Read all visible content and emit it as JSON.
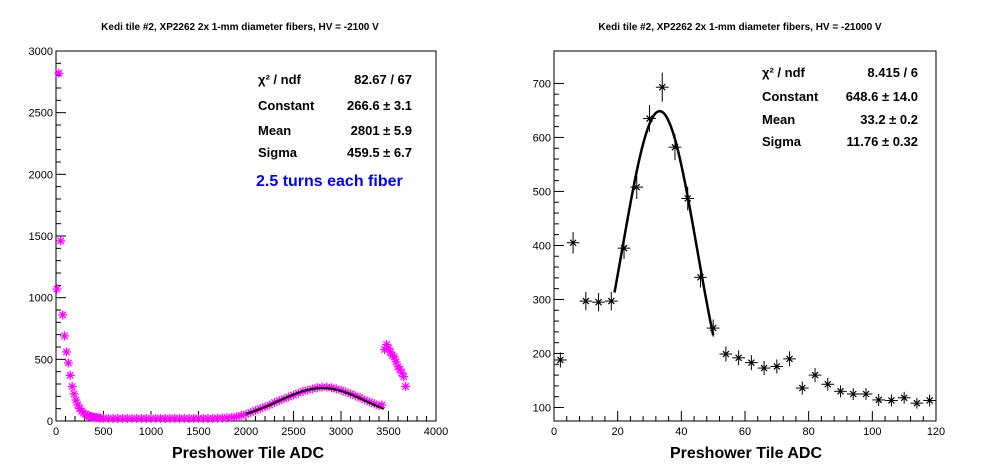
{
  "chart_data": [
    {
      "type": "scatter",
      "title": "Kedi tile #2, XP2262 2x 1-mm diameter fibers, HV = -2100 V",
      "xlabel": "Preshower Tile ADC",
      "xlim": [
        0,
        4000
      ],
      "ylim": [
        0,
        3000
      ],
      "xticks": [
        "0",
        "500",
        "1000",
        "1500",
        "2000",
        "2500",
        "3000",
        "3500",
        "4000"
      ],
      "yticks": [
        "0",
        "500",
        "1000",
        "1500",
        "2000",
        "2500",
        "3000"
      ],
      "marker_color": "#ff00ff",
      "x": [
        10,
        30,
        50,
        70,
        90,
        110,
        130,
        150,
        170,
        190,
        210,
        230,
        250,
        270,
        290,
        310,
        330,
        350,
        370,
        390,
        410,
        430,
        450,
        470,
        500,
        550,
        600,
        650,
        700,
        750,
        800,
        850,
        900,
        950,
        1000,
        1050,
        1100,
        1150,
        1200,
        1250,
        1300,
        1350,
        1400,
        1450,
        1500,
        1550,
        1600,
        1650,
        1700,
        1750,
        1800,
        1850,
        1900,
        1950,
        2000,
        2050,
        2100,
        2150,
        2200,
        2250,
        2300,
        2350,
        2400,
        2450,
        2500,
        2550,
        2600,
        2650,
        2700,
        2750,
        2800,
        2850,
        2900,
        2950,
        3000,
        3050,
        3100,
        3150,
        3200,
        3250,
        3300,
        3350,
        3400,
        3430,
        3460,
        3480,
        3500,
        3520,
        3540,
        3560,
        3580,
        3600,
        3620,
        3640,
        3660,
        3680
      ],
      "y": [
        1070,
        2820,
        1460,
        860,
        690,
        560,
        470,
        370,
        280,
        220,
        170,
        130,
        100,
        80,
        65,
        55,
        45,
        40,
        35,
        32,
        30,
        28,
        26,
        24,
        22,
        20,
        20,
        20,
        20,
        20,
        20,
        20,
        20,
        20,
        20,
        20,
        20,
        20,
        20,
        20,
        20,
        20,
        20,
        20,
        20,
        20,
        20,
        20,
        22,
        24,
        26,
        30,
        35,
        45,
        55,
        70,
        85,
        100,
        115,
        130,
        150,
        165,
        180,
        195,
        210,
        225,
        240,
        250,
        260,
        270,
        275,
        275,
        270,
        260,
        250,
        235,
        220,
        205,
        190,
        170,
        155,
        140,
        125,
        130,
        580,
        620,
        590,
        560,
        530,
        520,
        480,
        440,
        420,
        390,
        360,
        280
      ],
      "fit": {
        "constant": 266.6,
        "mean": 2801,
        "sigma": 459.5,
        "xrange": [
          2000,
          3450
        ]
      },
      "stats": [
        {
          "label": "χ² / ndf",
          "value": "82.67 / 67"
        },
        {
          "label": "Constant",
          "value": "266.6 ± 3.1"
        },
        {
          "label": "Mean",
          "value": "2801 ± 5.9"
        },
        {
          "label": "Sigma",
          "value": "459.5 ± 6.7"
        }
      ],
      "annotation": "2.5 turns each fiber",
      "annotation_color": "#0000ff"
    },
    {
      "type": "scatter",
      "title": "Kedi tile #2, XP2262 2x 1-mm diameter fibers, HV = -21000 V",
      "xlabel": "Preshower Tile ADC",
      "xlim": [
        0,
        120
      ],
      "ylim": [
        75,
        760
      ],
      "xticks": [
        "0",
        "20",
        "40",
        "60",
        "80",
        "100",
        "120"
      ],
      "yticks": [
        "100",
        "200",
        "300",
        "400",
        "500",
        "600",
        "700"
      ],
      "marker_color": "#000000",
      "x": [
        2,
        6,
        10,
        14,
        18,
        22,
        26,
        30,
        34,
        38,
        42,
        46,
        50,
        54,
        58,
        62,
        66,
        70,
        74,
        78,
        82,
        86,
        90,
        94,
        98,
        102,
        106,
        110,
        114,
        118
      ],
      "y": [
        188,
        405,
        297,
        295,
        297,
        395,
        508,
        635,
        693,
        582,
        487,
        341,
        247,
        199,
        192,
        183,
        173,
        176,
        190,
        136,
        160,
        143,
        130,
        125,
        125,
        114,
        113,
        118,
        108,
        113
      ],
      "yerr": [
        14,
        20,
        17,
        17,
        17,
        20,
        22,
        25,
        27,
        24,
        22,
        19,
        16,
        14,
        14,
        14,
        13,
        13,
        14,
        12,
        13,
        12,
        11,
        11,
        11,
        11,
        11,
        11,
        10,
        11
      ],
      "fit": {
        "constant": 648.6,
        "mean": 33.2,
        "sigma": 11.76,
        "xrange": [
          19,
          50
        ]
      },
      "stats": [
        {
          "label": "χ² / ndf",
          "value": "8.415 / 6"
        },
        {
          "label": "Constant",
          "value": "648.6 ± 14.0"
        },
        {
          "label": "Mean",
          "value": "33.2 ± 0.2"
        },
        {
          "label": "Sigma",
          "value": "11.76 ± 0.32"
        }
      ]
    }
  ]
}
